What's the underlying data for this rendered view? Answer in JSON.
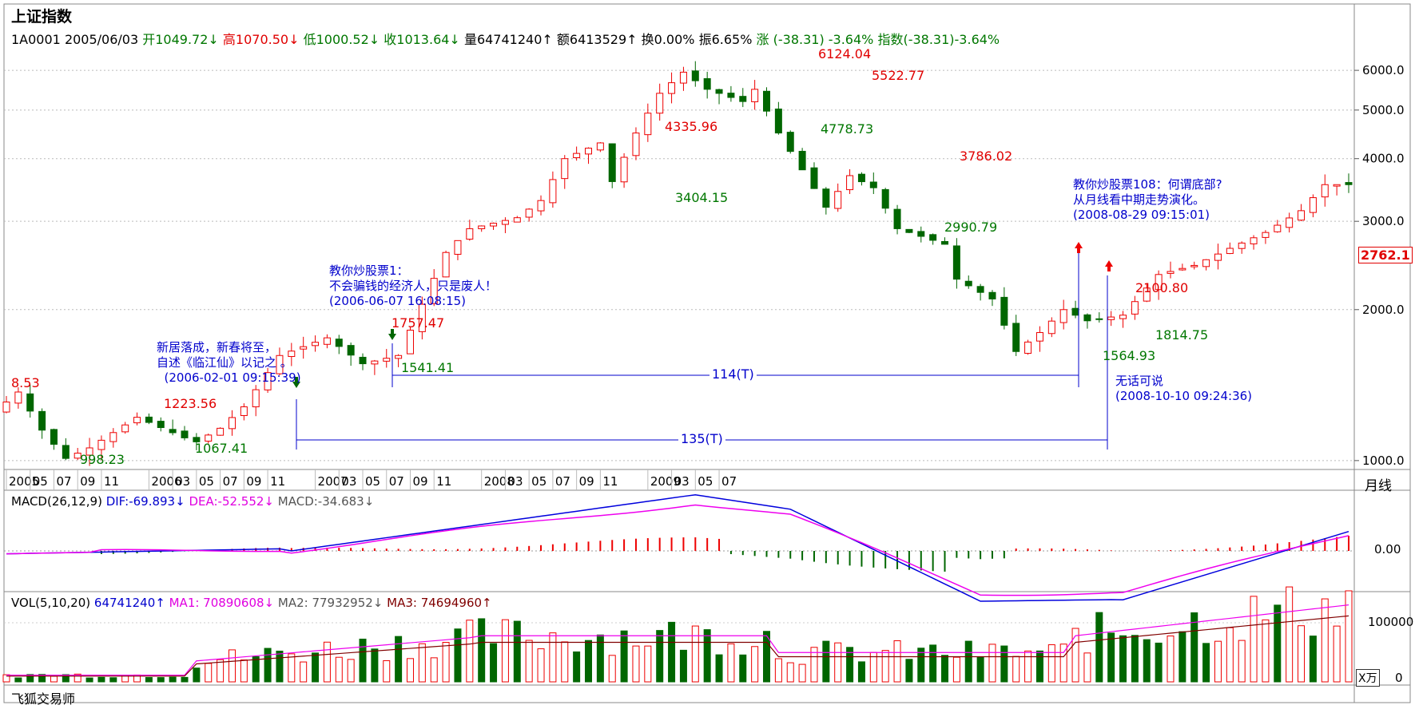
{
  "header": {
    "title": "上证指数",
    "code": "1A0001",
    "date": "2005/06/03",
    "open": "开1049.72↓",
    "high": "高1070.50↓",
    "low": "低1000.52↓",
    "close": "收1013.64↓",
    "volume": "量64741240↑",
    "amount": "额6413529↑",
    "turnover": "换0.00%",
    "amplitude": "振6.65%",
    "change": "涨 (-38.31) -3.64%",
    "index_change": "指数(-38.31)-3.64%"
  },
  "footer": {
    "app_name": "飞狐交易师",
    "unit": "X万"
  },
  "chart_data": {
    "type": "candlestick",
    "period": "月线",
    "y_ticks": [
      "6000.0",
      "5000.0",
      "4000.0",
      "3000.0",
      "2000.0",
      "1000.0"
    ],
    "y_tick_values": [
      6000,
      5000,
      4000,
      3000,
      2000,
      1000
    ],
    "y_scale": "log",
    "ylim": [
      960,
      6700
    ],
    "last_price": "2762.1",
    "x_labels": [
      "2005",
      "05",
      "07",
      "09",
      "11",
      "2006",
      "03",
      "05",
      "07",
      "09",
      "11",
      "2007",
      "03",
      "05",
      "07",
      "09",
      "11",
      "2008",
      "03",
      "05",
      "07",
      "09",
      "11",
      "2009",
      "03",
      "05",
      "07"
    ],
    "close_path_months": [
      0,
      2,
      4,
      6,
      8,
      12,
      16,
      17,
      19,
      21,
      24,
      28,
      31,
      34,
      35,
      38,
      40,
      44,
      46,
      48,
      51,
      52,
      54,
      56,
      58,
      60,
      63,
      64,
      66,
      68,
      70,
      72,
      74,
      76,
      78,
      80,
      81,
      84,
      86,
      88,
      90,
      92,
      95,
      98,
      101,
      104,
      107,
      110,
      112
    ],
    "close_path_values": [
      1250,
      1370,
      1150,
      1010,
      1060,
      1220,
      1110,
      1090,
      1160,
      1280,
      1620,
      1757,
      1560,
      1620,
      1820,
      2600,
      2900,
      3050,
      3300,
      4000,
      4300,
      3600,
      4500,
      5400,
      5950,
      5500,
      5200,
      5500,
      4500,
      3800,
      3200,
      3700,
      3500,
      2900,
      2800,
      2700,
      2300,
      2100,
      1650,
      1800,
      2000,
      1900,
      1950,
      2350,
      2450,
      2650,
      2850,
      3150,
      3550
    ],
    "price_labels": [
      {
        "text": "8.53",
        "color": "red"
      },
      {
        "text": "998.23",
        "color": "green"
      },
      {
        "text": "1223.56",
        "color": "red"
      },
      {
        "text": "1067.41",
        "color": "green"
      },
      {
        "text": "1757.47",
        "color": "red"
      },
      {
        "text": "1541.41",
        "color": "green"
      },
      {
        "text": "4335.96",
        "color": "red"
      },
      {
        "text": "3404.15",
        "color": "green"
      },
      {
        "text": "6124.04",
        "color": "red"
      },
      {
        "text": "4778.73",
        "color": "green"
      },
      {
        "text": "5522.77",
        "color": "red"
      },
      {
        "text": "3786.02",
        "color": "red"
      },
      {
        "text": "2990.79",
        "color": "green"
      },
      {
        "text": "2100.80",
        "color": "red"
      },
      {
        "text": "1814.75",
        "color": "green"
      },
      {
        "text": "1564.93",
        "color": "green"
      }
    ],
    "annotations": [
      {
        "lines": [
          "新居落成，新春将至，",
          "自述《临江仙》以记之 。",
          "  (2006-02-01 09:15:39)"
        ]
      },
      {
        "lines": [
          "教你炒股票1：",
          "不会骗钱的经济人，只是废人！",
          "(2006-06-07 16:08:15)"
        ]
      },
      {
        "lines": [
          "教你炒股票108：何谓底部?",
          "从月线看中期走势演化。",
          "(2008-08-29 09:15:01)"
        ]
      },
      {
        "lines": [
          "无话可说",
          "(2008-10-10 09:24:36)"
        ]
      }
    ],
    "brackets": [
      {
        "label": "114(T)"
      },
      {
        "label": "135(T)"
      }
    ],
    "macd": {
      "legend": "MACD(26,12,9)",
      "dif": "DIF:-69.893↓",
      "dea": "DEA:-52.552↓",
      "macd": "MACD:-34.683↓",
      "zero_label": "0.00"
    },
    "vol": {
      "legend": "VOL(5,10,20)",
      "vol": "64741240↑",
      "ma1": "MA1: 70890608↓",
      "ma2": "MA2: 77932952↓",
      "ma3": "MA3: 74694960↑",
      "y_labels": [
        "100000",
        "0"
      ]
    }
  },
  "colors": {
    "up": "#ee0000",
    "down": "#006600",
    "annotation": "#0000cc",
    "dif": "#0000dd",
    "dea": "#ee00ee",
    "grid": "#bbbbbb"
  }
}
